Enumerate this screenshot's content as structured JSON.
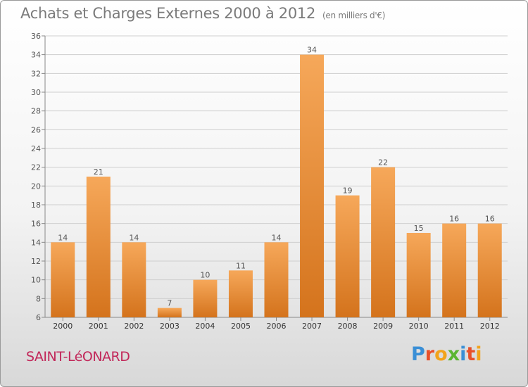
{
  "title": "Achats et Charges Externes 2000 à 2012",
  "subtitle": "(en milliers d'€)",
  "commune": "SAINT-LéONARD",
  "logo": {
    "text": "Proxiti",
    "letter_colors": [
      "#3a8fd6",
      "#e8502a",
      "#f2a31b",
      "#5bb531",
      "#3a8fd6",
      "#e8502a",
      "#f2a31b"
    ]
  },
  "colors": {
    "bar_light": "#f6a85a",
    "bar_dark": "#d4731c",
    "grid": "#cfcfcf",
    "commune": "#c2285a",
    "title": "#7a7a7a"
  },
  "chart_data": {
    "type": "bar",
    "title": "Achats et Charges Externes 2000 à 2012",
    "subtitle": "(en milliers d'€)",
    "categories": [
      "2000",
      "2001",
      "2002",
      "2003",
      "2004",
      "2005",
      "2006",
      "2007",
      "2008",
      "2009",
      "2010",
      "2011",
      "2012"
    ],
    "values": [
      14,
      21,
      14,
      7,
      10,
      11,
      14,
      34,
      19,
      22,
      15,
      16,
      16
    ],
    "ylim": [
      6,
      36
    ],
    "yticks": [
      6,
      8,
      10,
      12,
      14,
      16,
      18,
      20,
      22,
      24,
      26,
      28,
      30,
      32,
      34,
      36
    ],
    "grid": true,
    "data_labels": true
  }
}
